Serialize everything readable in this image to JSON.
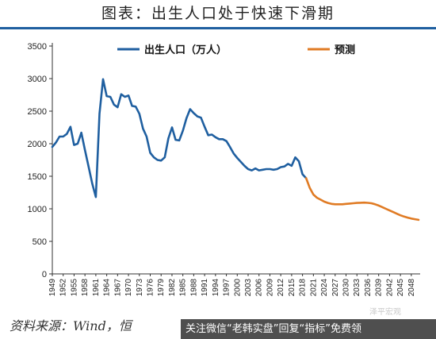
{
  "title": "图表：出生人口处于快速下滑期",
  "source": "资料来源：Wind，恒",
  "banner": "关注微信“老韩实盘”回复“指标”免费领",
  "watermark": "泽平宏观",
  "colors": {
    "history": "#1f5fa0",
    "forecast": "#e07b24",
    "title_rule": "#1f5fa0"
  },
  "chart_data": {
    "type": "line",
    "title": "图表：出生人口处于快速下滑期",
    "xlabel": "",
    "ylabel": "",
    "ylim": [
      0,
      3500
    ],
    "yticks": [
      0,
      500,
      1000,
      1500,
      2000,
      2500,
      3000,
      3500
    ],
    "xlim": [
      1949,
      2050
    ],
    "xticks": [
      1949,
      1952,
      1955,
      1958,
      1961,
      1964,
      1967,
      1970,
      1973,
      1976,
      1979,
      1982,
      1985,
      1988,
      1991,
      1994,
      1997,
      2000,
      2003,
      2006,
      2009,
      2012,
      2015,
      2018,
      2021,
      2024,
      2027,
      2030,
      2033,
      2036,
      2039,
      2042,
      2045,
      2048
    ],
    "grid": false,
    "legend": "top",
    "series": [
      {
        "name": "出生人口（万人）",
        "color": "#1f5fa0",
        "x": [
          1949,
          1950,
          1951,
          1952,
          1953,
          1954,
          1955,
          1956,
          1957,
          1958,
          1959,
          1960,
          1961,
          1962,
          1963,
          1964,
          1965,
          1966,
          1967,
          1968,
          1969,
          1970,
          1971,
          1972,
          1973,
          1974,
          1975,
          1976,
          1977,
          1978,
          1979,
          1980,
          1981,
          1982,
          1983,
          1984,
          1985,
          1986,
          1987,
          1988,
          1989,
          1990,
          1991,
          1992,
          1993,
          1994,
          1995,
          1996,
          1997,
          1998,
          1999,
          2000,
          2001,
          2002,
          2003,
          2004,
          2005,
          2006,
          2007,
          2008,
          2009,
          2010,
          2011,
          2012,
          2013,
          2014,
          2015,
          2016,
          2017,
          2018,
          2019
        ],
        "values": [
          1950,
          2020,
          2110,
          2110,
          2150,
          2260,
          1980,
          2000,
          2170,
          1900,
          1650,
          1390,
          1180,
          2460,
          2990,
          2730,
          2720,
          2600,
          2560,
          2760,
          2720,
          2740,
          2580,
          2570,
          2460,
          2230,
          2110,
          1860,
          1790,
          1750,
          1740,
          1790,
          2080,
          2250,
          2060,
          2050,
          2200,
          2390,
          2530,
          2470,
          2420,
          2400,
          2260,
          2130,
          2140,
          2100,
          2070,
          2070,
          2040,
          1950,
          1850,
          1780,
          1720,
          1660,
          1610,
          1590,
          1620,
          1590,
          1600,
          1610,
          1610,
          1600,
          1610,
          1640,
          1650,
          1690,
          1660,
          1790,
          1730,
          1530,
          1470
        ]
      },
      {
        "name": "预测",
        "color": "#e07b24",
        "x": [
          2019,
          2020,
          2021,
          2022,
          2023,
          2024,
          2025,
          2026,
          2027,
          2028,
          2029,
          2030,
          2031,
          2032,
          2033,
          2034,
          2035,
          2036,
          2037,
          2038,
          2039,
          2040,
          2041,
          2042,
          2043,
          2044,
          2045,
          2046,
          2047,
          2048,
          2049,
          2050
        ],
        "values": [
          1470,
          1320,
          1220,
          1170,
          1140,
          1110,
          1090,
          1075,
          1070,
          1070,
          1070,
          1075,
          1080,
          1085,
          1090,
          1093,
          1095,
          1092,
          1085,
          1070,
          1050,
          1025,
          1000,
          975,
          950,
          925,
          900,
          880,
          865,
          850,
          840,
          830
        ]
      }
    ]
  }
}
